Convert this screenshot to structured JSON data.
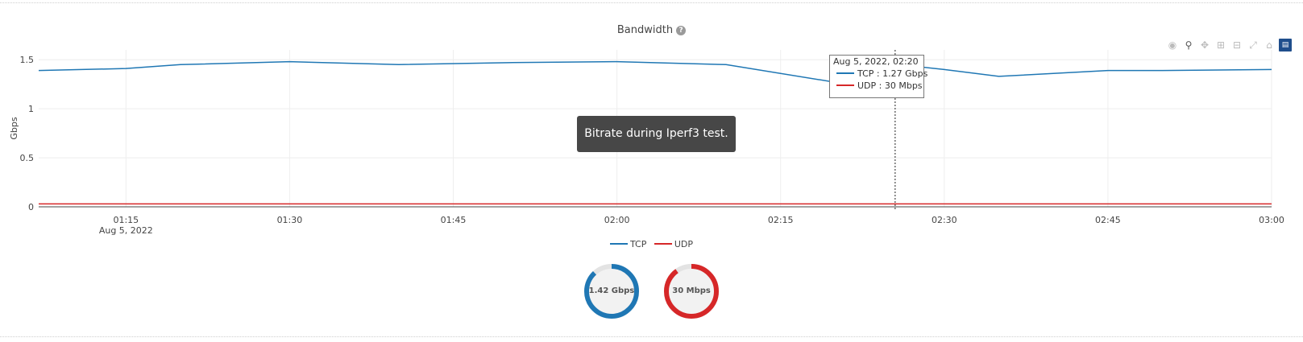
{
  "header": {
    "title": "Bandwidth",
    "help_icon": "?"
  },
  "toolbar": {
    "icons": [
      "camera-icon",
      "zoom-icon",
      "pan-icon",
      "zoom-in-icon",
      "zoom-out-icon",
      "autoscale-icon",
      "home-icon",
      "chart-icon"
    ]
  },
  "chart_data": {
    "type": "line",
    "title": "Bandwidth",
    "xlabel": "",
    "ylabel": "Gbps",
    "ylim": [
      0,
      1.6
    ],
    "yticks": [
      0,
      0.5,
      1,
      1.5
    ],
    "ytick_labels": [
      "0",
      "0.5",
      "1",
      "1.5"
    ],
    "xlim_minutes": [
      -8,
      105
    ],
    "xticks_minutes": [
      0,
      15,
      30,
      45,
      60,
      75,
      90,
      105
    ],
    "xtick_labels": [
      "01:15",
      "01:30",
      "01:45",
      "02:00",
      "02:15",
      "02:30",
      "02:45",
      "03:00"
    ],
    "xtick_sublabel": "Aug 5, 2022",
    "grid": true,
    "series": [
      {
        "name": "TCP",
        "color": "#1f77b4",
        "x_minutes": [
          -8,
          0,
          5,
          15,
          25,
          35,
          45,
          55,
          65,
          70,
          75,
          80,
          85,
          90,
          95,
          105
        ],
        "values": [
          1.39,
          1.41,
          1.45,
          1.48,
          1.45,
          1.47,
          1.48,
          1.45,
          1.27,
          1.46,
          1.4,
          1.33,
          1.36,
          1.39,
          1.39,
          1.4
        ]
      },
      {
        "name": "UDP",
        "color": "#d62728",
        "x_minutes": [
          -8,
          105
        ],
        "values": [
          0.03,
          0.03
        ]
      }
    ],
    "hover": {
      "x_minutes": 70.5,
      "title": "Aug 5, 2022, 02:20",
      "tcp": "TCP : 1.27 Gbps",
      "udp": "UDP : 30 Mbps"
    },
    "legend": [
      "TCP",
      "UDP"
    ]
  },
  "tooltip": {
    "text": "Bitrate during Iperf3 test."
  },
  "gauges": [
    {
      "label": "1.42 Gbps",
      "color": "#1f77b4",
      "fraction": 0.88
    },
    {
      "label": "30 Mbps",
      "color": "#d62728",
      "fraction": 0.9
    }
  ]
}
